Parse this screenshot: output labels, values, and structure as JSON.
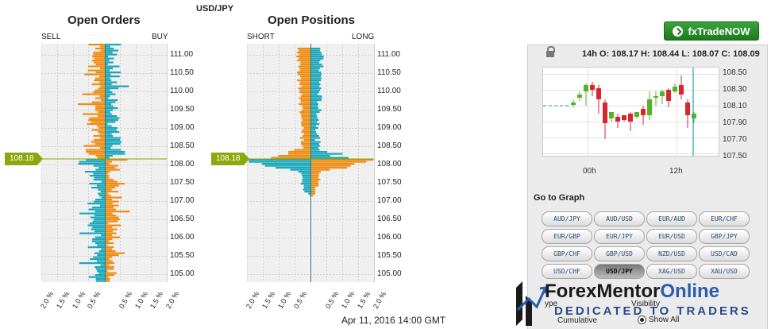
{
  "pair": "USD/JPY",
  "open_orders": {
    "title": "Open Orders",
    "left_label": "SELL",
    "right_label": "BUY",
    "price_badge": "108.18",
    "y_ticks": [
      "111.00",
      "110.50",
      "110.00",
      "109.50",
      "109.00",
      "108.50",
      "108.00",
      "107.50",
      "107.00",
      "106.50",
      "106.00",
      "105.50",
      "105.00"
    ],
    "x_ticks": [
      "2.0 %",
      "1.5 %",
      "1.0 %",
      "0.5 %",
      "",
      "0.5 %",
      "1.0 %",
      "1.5 %",
      "2.0 %"
    ]
  },
  "open_positions": {
    "title": "Open Positions",
    "left_label": "SHORT",
    "right_label": "LONG",
    "price_badge": "108.18",
    "y_ticks": [
      "111.00",
      "110.50",
      "110.00",
      "109.50",
      "109.00",
      "108.50",
      "108.00",
      "107.50",
      "107.00",
      "106.50",
      "106.00",
      "105.50",
      "105.00"
    ],
    "x_ticks": [
      "2.0 %",
      "1.5 %",
      "1.0 %",
      "0.5 %",
      "",
      "0.5 %",
      "1.0 %",
      "1.5 %",
      "2.0 %"
    ]
  },
  "colors": {
    "teal": "#1aa7bb",
    "orange": "#f08c12",
    "green": "#8aa90d"
  },
  "right_panel": {
    "trade_button": "fxTradeNOW",
    "ohlc": "14h O: 108.17 H: 108.44 L: 108.07 C: 108.09",
    "mini_chart": {
      "y_ticks": [
        "108.50",
        "108.30",
        "108.10",
        "107.90",
        "107.70",
        "107.50"
      ],
      "x_ticks": [
        "00h",
        "12h"
      ]
    },
    "goto_label": "Go to Graph",
    "pairs": [
      "AUD/JPY",
      "AUD/USD",
      "EUR/AUD",
      "EUR/CHF",
      "EUR/GBP",
      "EUR/JPY",
      "EUR/USD",
      "GBP/JPY",
      "GBP/CHF",
      "GBP/USD",
      "NZD/USD",
      "USD/CAD",
      "USD/CHF",
      "USD/JPY",
      "XAG/USD",
      "XAU/USD"
    ],
    "active_pair": "USD/JPY",
    "type_label": "ype",
    "type_option": "Cumulative",
    "visibility_label": "Visibility",
    "visibility_option": "Show All"
  },
  "logo": {
    "brand_part1": "ForexMentor",
    "brand_part2": "Online",
    "tagline": "DEDICATED TO TRADERS"
  },
  "timestamp": "Apr 11, 2016 14:00 GMT"
}
